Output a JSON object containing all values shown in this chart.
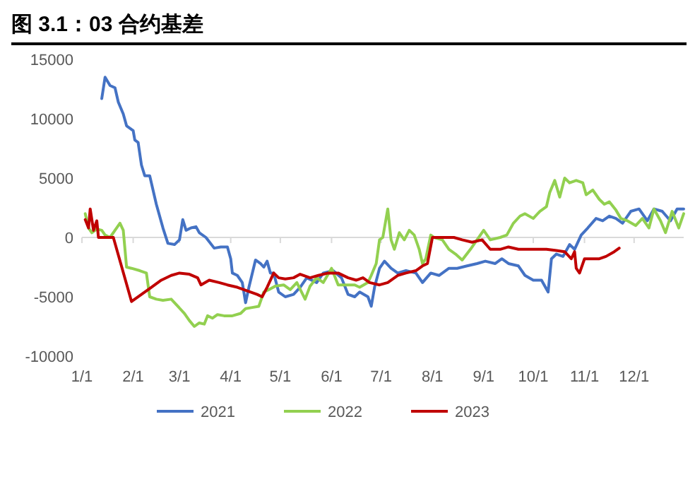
{
  "chart_data": {
    "type": "line",
    "title": "图 3.1：03 合约基差",
    "xlim": [
      "--01-01",
      "--12-31"
    ],
    "ylim": [
      -10000,
      15000
    ],
    "xticks": [
      {
        "value": "--01-01",
        "label": "1/1"
      },
      {
        "value": "--02-01",
        "label": "2/1"
      },
      {
        "value": "--03-01",
        "label": "3/1"
      },
      {
        "value": "--04-01",
        "label": "4/1"
      },
      {
        "value": "--05-01",
        "label": "5/1"
      },
      {
        "value": "--06-01",
        "label": "6/1"
      },
      {
        "value": "--07-01",
        "label": "7/1"
      },
      {
        "value": "--08-01",
        "label": "8/1"
      },
      {
        "value": "--09-01",
        "label": "9/1"
      },
      {
        "value": "--10-01",
        "label": "10/1"
      },
      {
        "value": "--11-01",
        "label": "11/1"
      },
      {
        "value": "--12-01",
        "label": "12/1"
      }
    ],
    "yticks": [
      -10000,
      -5000,
      0,
      5000,
      10000,
      15000
    ],
    "grid": false,
    "ref_lines": [
      {
        "axis": "y",
        "value": 0,
        "color": "#d9d9d9"
      }
    ],
    "legend": "bottom",
    "marker": "none",
    "line_style": "solid",
    "series": [
      {
        "name": "2021",
        "color": "#4472c4",
        "x": [
          "--01-13",
          "--01-15",
          "--01-18",
          "--01-21",
          "--01-23",
          "--01-26",
          "--01-28",
          "--02-01",
          "--02-02",
          "--02-04",
          "--02-06",
          "--02-08",
          "--02-11",
          "--02-15",
          "--02-19",
          "--02-22",
          "--02-26",
          "--03-01",
          "--03-03",
          "--03-05",
          "--03-08",
          "--03-11",
          "--03-13",
          "--03-17",
          "--03-22",
          "--03-26",
          "--03-30",
          "--04-01",
          "--04-02",
          "--04-05",
          "--04-08",
          "--04-10",
          "--04-12",
          "--04-16",
          "--04-19",
          "--04-21",
          "--04-23",
          "--04-25",
          "--04-27",
          "--04-30",
          "--05-04",
          "--05-09",
          "--05-13",
          "--05-17",
          "--05-23",
          "--05-27",
          "--06-02",
          "--06-07",
          "--06-11",
          "--06-15",
          "--06-18",
          "--06-23",
          "--06-25",
          "--06-27",
          "--06-30",
          "--07-03",
          "--07-07",
          "--07-11",
          "--07-16",
          "--07-22",
          "--07-26",
          "--07-31",
          "--08-05",
          "--08-11",
          "--08-16",
          "--08-22",
          "--08-28",
          "--09-02",
          "--09-08",
          "--09-12",
          "--09-16",
          "--09-22",
          "--09-26",
          "--10-01",
          "--10-06",
          "--10-10",
          "--10-12",
          "--10-15",
          "--10-19",
          "--10-23",
          "--10-26",
          "--10-30",
          "--11-03",
          "--11-08",
          "--11-12",
          "--11-16",
          "--11-20",
          "--11-24",
          "--11-29",
          "--12-04",
          "--12-09",
          "--12-13",
          "--12-18",
          "--12-23",
          "--12-27",
          "--12-31"
        ],
        "values": [
          11700,
          13500,
          12800,
          12600,
          11400,
          10400,
          9400,
          9000,
          8200,
          8000,
          6100,
          5200,
          5200,
          2800,
          800,
          -500,
          -600,
          -200,
          1500,
          600,
          800,
          900,
          400,
          0,
          -900,
          -800,
          -800,
          -1800,
          -3000,
          -3200,
          -3800,
          -5500,
          -4200,
          -1900,
          -2200,
          -2500,
          -2000,
          -3000,
          -3000,
          -4600,
          -5000,
          -4800,
          -4200,
          -3400,
          -3800,
          -3000,
          -2800,
          -3400,
          -4800,
          -5000,
          -4600,
          -5000,
          -5800,
          -4200,
          -2600,
          -2000,
          -2600,
          -3000,
          -2800,
          -3000,
          -3800,
          -3000,
          -3200,
          -2600,
          -2600,
          -2400,
          -2200,
          -2000,
          -2200,
          -1800,
          -2200,
          -2400,
          -3200,
          -3600,
          -3600,
          -4600,
          -1800,
          -1400,
          -1600,
          -600,
          -1000,
          200,
          800,
          1600,
          1400,
          1800,
          1600,
          1200,
          2200,
          2400,
          1400,
          2400,
          2200,
          1400,
          2400,
          2400
        ]
      },
      {
        "name": "2022",
        "color": "#92d050",
        "x": [
          "--01-03",
          "--01-05",
          "--01-07",
          "--01-10",
          "--01-13",
          "--01-15",
          "--01-18",
          "--01-21",
          "--01-24",
          "--01-26",
          "--01-28",
          "--01-31",
          "--02-05",
          "--02-09",
          "--02-11",
          "--02-15",
          "--02-19",
          "--02-24",
          "--02-28",
          "--03-04",
          "--03-07",
          "--03-10",
          "--03-13",
          "--03-16",
          "--03-18",
          "--03-21",
          "--03-24",
          "--03-28",
          "--04-02",
          "--04-07",
          "--04-10",
          "--04-14",
          "--04-18",
          "--04-21",
          "--04-24",
          "--04-28",
          "--05-03",
          "--05-07",
          "--05-11",
          "--05-16",
          "--05-19",
          "--05-23",
          "--05-27",
          "--06-01",
          "--06-05",
          "--06-09",
          "--06-15",
          "--06-18",
          "--06-23",
          "--06-25",
          "--06-28",
          "--06-30",
          "--07-02",
          "--07-05",
          "--07-07",
          "--07-09",
          "--07-12",
          "--07-15",
          "--07-18",
          "--07-21",
          "--07-24",
          "--07-26",
          "--07-28",
          "--07-31",
          "--08-02",
          "--08-07",
          "--08-11",
          "--08-15",
          "--08-19",
          "--08-24",
          "--08-28",
          "--09-01",
          "--09-05",
          "--09-11",
          "--09-15",
          "--09-19",
          "--09-23",
          "--09-26",
          "--10-01",
          "--10-05",
          "--10-09",
          "--10-11",
          "--10-14",
          "--10-17",
          "--10-20",
          "--10-23",
          "--10-27",
          "--10-31",
          "--11-02",
          "--11-06",
          "--11-10",
          "--11-13",
          "--11-16",
          "--11-20",
          "--11-23",
          "--11-27",
          "--12-02",
          "--12-06",
          "--12-10",
          "--12-13",
          "--12-17",
          "--12-20",
          "--12-24",
          "--12-28",
          "--12-31"
        ],
        "values": [
          2000,
          800,
          400,
          700,
          600,
          200,
          0,
          600,
          1200,
          600,
          -2500,
          -2600,
          -2800,
          -3000,
          -5000,
          -5200,
          -5300,
          -5200,
          -5800,
          -6400,
          -7000,
          -7500,
          -7200,
          -7300,
          -6600,
          -6800,
          -6500,
          -6600,
          -6600,
          -6400,
          -6000,
          -5900,
          -5800,
          -4600,
          -4400,
          -4100,
          -4000,
          -4400,
          -3800,
          -5200,
          -4100,
          -3400,
          -3800,
          -2600,
          -4000,
          -4000,
          -4000,
          -4200,
          -3800,
          -3200,
          -2200,
          -200,
          0,
          2400,
          -200,
          -1000,
          400,
          -200,
          600,
          200,
          -1000,
          -2200,
          -1800,
          200,
          0,
          -200,
          -1000,
          -1400,
          -1900,
          -1000,
          -200,
          600,
          -200,
          0,
          200,
          1200,
          1800,
          2000,
          1600,
          2200,
          2600,
          3800,
          4800,
          3400,
          5000,
          4600,
          4800,
          4600,
          3600,
          4000,
          3200,
          2800,
          3000,
          2300,
          1600,
          1400,
          1000,
          1600,
          800,
          2400,
          1400,
          400,
          2200,
          800,
          2000
        ]
      },
      {
        "name": "2023",
        "color": "#c00000",
        "x": [
          "--01-03",
          "--01-05",
          "--01-06",
          "--01-08",
          "--01-10",
          "--01-11",
          "--01-17",
          "--01-20",
          "--01-31",
          "--02-06",
          "--02-12",
          "--02-18",
          "--02-24",
          "--03-01",
          "--03-07",
          "--03-12",
          "--03-14",
          "--03-19",
          "--03-25",
          "--03-30",
          "--04-05",
          "--04-11",
          "--04-17",
          "--04-20",
          "--04-23",
          "--04-27",
          "--04-30",
          "--05-04",
          "--05-09",
          "--05-13",
          "--05-19",
          "--05-24",
          "--05-30",
          "--06-05",
          "--06-11",
          "--06-16",
          "--06-20",
          "--06-24",
          "--06-30",
          "--07-05",
          "--07-11",
          "--07-16",
          "--07-22",
          "--07-26",
          "--07-29",
          "--08-01",
          "--08-05",
          "--08-14",
          "--08-19",
          "--08-25",
          "--08-31",
          "--09-05",
          "--09-11",
          "--09-16",
          "--09-22",
          "--09-28",
          "--10-03",
          "--10-09",
          "--10-15",
          "--10-20",
          "--10-24",
          "--10-26",
          "--10-27",
          "--10-29",
          "--11-01",
          "--11-06",
          "--11-10",
          "--11-14",
          "--11-19",
          "--11-22"
        ],
        "values": [
          1500,
          800,
          2400,
          600,
          1400,
          0,
          0,
          0,
          -5400,
          -4800,
          -4200,
          -3600,
          -3200,
          -3000,
          -3100,
          -3400,
          -4000,
          -3600,
          -3800,
          -4000,
          -4200,
          -4500,
          -4800,
          -5000,
          -4200,
          -3000,
          -3400,
          -3500,
          -3400,
          -3100,
          -3400,
          -3200,
          -3000,
          -3000,
          -3400,
          -3600,
          -3400,
          -3800,
          -4000,
          -3800,
          -3200,
          -3000,
          -2800,
          -2400,
          -2200,
          0,
          0,
          0,
          -200,
          -400,
          -200,
          -1000,
          -1000,
          -800,
          -1000,
          -1000,
          -1000,
          -1000,
          -1100,
          -1200,
          -1800,
          -1200,
          -2600,
          -3000,
          -1800,
          -1800,
          -1800,
          -1600,
          -1200,
          -900
        ]
      }
    ]
  }
}
